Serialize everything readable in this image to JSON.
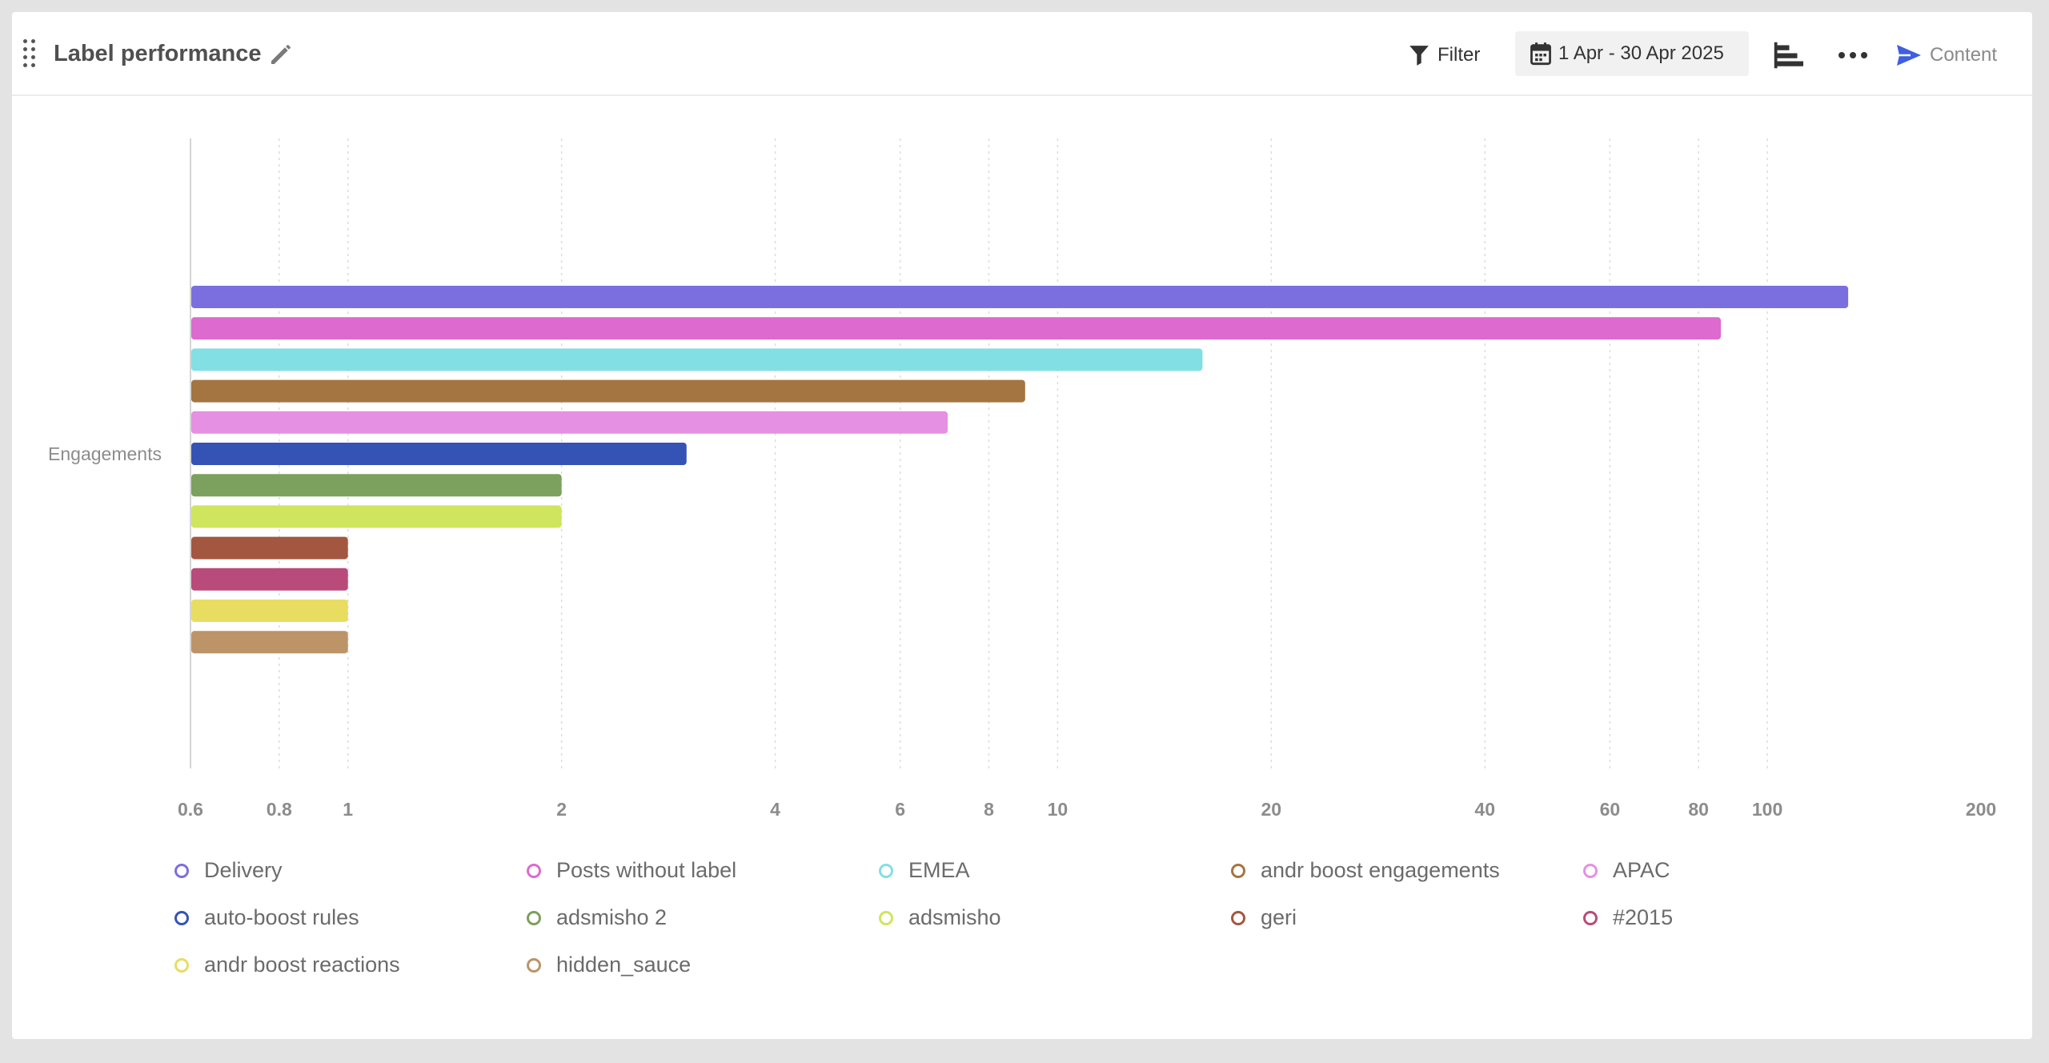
{
  "header": {
    "title": "Label performance",
    "filter_label": "Filter",
    "date_range": "1 Apr - 30 Apr 2025",
    "content_label": "Content"
  },
  "icons": {
    "drag": "drag-handle-icon",
    "edit": "pencil-icon",
    "filter": "funnel-icon",
    "date": "calendar-icon",
    "chart_type": "bar-chart-icon",
    "more": "more-dots-icon",
    "content": "send-icon"
  },
  "colors": {
    "content_icon": "#3f5fe0"
  },
  "chart_data": {
    "type": "bar",
    "orientation": "horizontal",
    "xscale": "log",
    "xlim": [
      0.6,
      200
    ],
    "xticks": [
      0.6,
      0.8,
      1,
      2,
      4,
      6,
      8,
      10,
      20,
      40,
      60,
      80,
      100,
      200
    ],
    "xtick_labels": [
      "0.6",
      "0.8",
      "1",
      "2",
      "4",
      "6",
      "8",
      "10",
      "20",
      "40",
      "60",
      "80",
      "100",
      "200"
    ],
    "ylabel": "Engagements",
    "grid": "vertical dotted",
    "legend_position": "bottom",
    "series": [
      {
        "name": "Delivery",
        "value": 130,
        "color": "#7b6fe0"
      },
      {
        "name": "Posts without label",
        "value": 86,
        "color": "#dc6acf"
      },
      {
        "name": "EMEA",
        "value": 16,
        "color": "#82dfe3"
      },
      {
        "name": "andr boost engagements",
        "value": 9,
        "color": "#a47540"
      },
      {
        "name": "APAC",
        "value": 7,
        "color": "#e590e2"
      },
      {
        "name": "auto-boost rules",
        "value": 3,
        "color": "#3553b4"
      },
      {
        "name": "adsmisho 2",
        "value": 2,
        "color": "#7ca05e"
      },
      {
        "name": "adsmisho",
        "value": 2,
        "color": "#cfe55d"
      },
      {
        "name": "geri",
        "value": 1,
        "color": "#a45740"
      },
      {
        "name": "#2015",
        "value": 1,
        "color": "#b84b7a"
      },
      {
        "name": "andr boost reactions",
        "value": 1,
        "color": "#e8dd60"
      },
      {
        "name": "hidden_sauce",
        "value": 1,
        "color": "#bc9468"
      }
    ]
  }
}
